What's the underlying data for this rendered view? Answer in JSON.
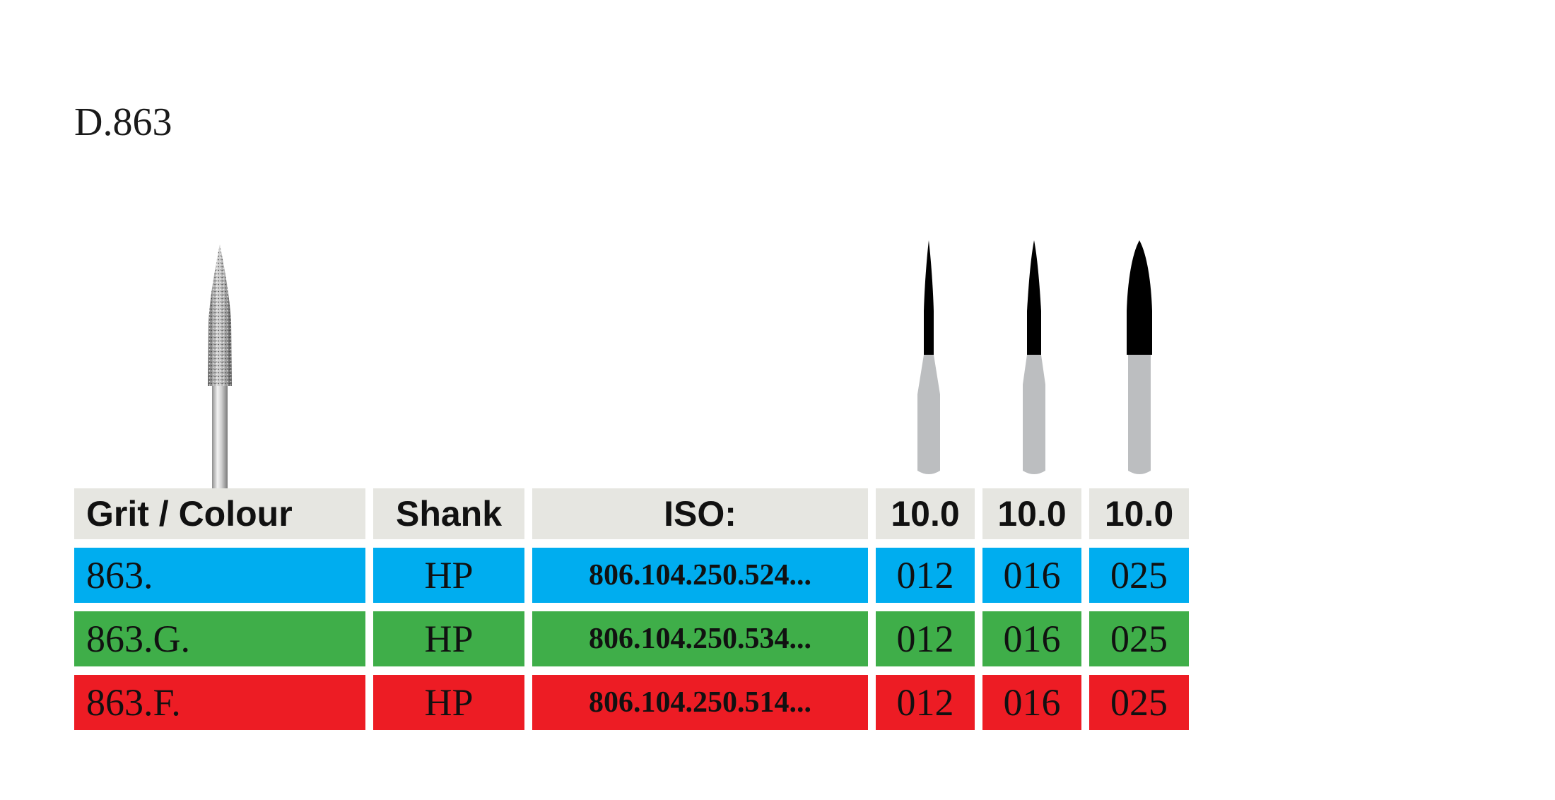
{
  "product": {
    "title": "D.863"
  },
  "header": {
    "grit_colour": "Grit / Colour",
    "shank": "Shank",
    "iso": "ISO:",
    "sizes": [
      "10.0",
      "10.0",
      "10.0"
    ]
  },
  "rows": [
    {
      "grit": "863.",
      "shank": "HP",
      "iso": "806.104.250.524...",
      "sizes": [
        "012",
        "016",
        "025"
      ],
      "color": "#00adef"
    },
    {
      "grit": "863.G.",
      "shank": "HP",
      "iso": "806.104.250.534...",
      "sizes": [
        "012",
        "016",
        "025"
      ],
      "color": "#3fae49"
    },
    {
      "grit": "863.F.",
      "shank": "HP",
      "iso": "806.104.250.514...",
      "sizes": [
        "012",
        "016",
        "025"
      ],
      "color": "#ed1c24"
    }
  ],
  "icons": {
    "bur_photo": "diamond-bur-icon",
    "silhouettes": [
      "bur-size-012-icon",
      "bur-size-016-icon",
      "bur-size-025-icon"
    ]
  },
  "colors": {
    "header_bg": "#e6e6e1",
    "silhouette_head": "#000000",
    "silhouette_shank": "#bcbec0"
  }
}
